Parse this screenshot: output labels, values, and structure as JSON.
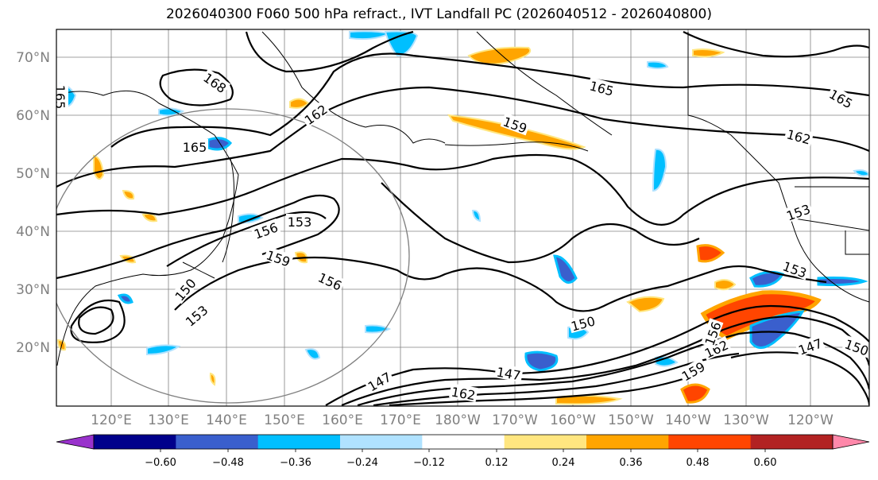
{
  "title": "2026040300 F060 500 hPa refract., IVT Landfall PC (2026040512 - 2026040800)",
  "lat_labels": [
    "70°N",
    "60°N",
    "50°N",
    "40°N",
    "30°N",
    "20°N"
  ],
  "lon_labels": [
    "120°E",
    "130°E",
    "140°E",
    "150°E",
    "160°E",
    "170°E",
    "180°W",
    "170°W",
    "160°W",
    "150°W",
    "140°W",
    "130°W",
    "120°W"
  ],
  "contour_labels": [
    "168",
    "165",
    "165",
    "162",
    "162",
    "159",
    "159",
    "156",
    "156",
    "153",
    "153",
    "153",
    "150",
    "150",
    "150",
    "147",
    "147",
    "147",
    "162",
    "162",
    "159",
    "156",
    "153",
    "165",
    "165"
  ],
  "colorbar": {
    "tick_labels": [
      "−0.60",
      "−0.48",
      "−0.36",
      "−0.24",
      "−0.12",
      "0.12",
      "0.24",
      "0.36",
      "0.48",
      "0.60"
    ],
    "colors": [
      "#9932cc",
      "#00008b",
      "#3a5fcd",
      "#00bfff",
      "#b0e2ff",
      "#ffffff",
      "#ffe680",
      "#ffa500",
      "#ff4500",
      "#b22222",
      "#ff88aa"
    ]
  },
  "colors": {
    "contour": "#000000",
    "grid": "#808080",
    "coast": "#000000",
    "circle": "#808080"
  }
}
